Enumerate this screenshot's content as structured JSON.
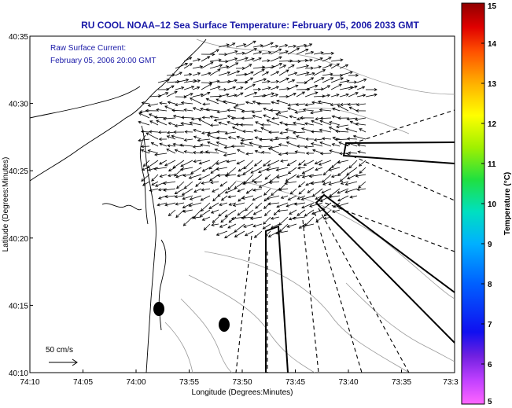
{
  "chart_data": {
    "type": "map",
    "title": "RU COOL  NOAA–12  Sea Surface Temperature:  February 05, 2006 2033 GMT",
    "subtitle": [
      "Raw Surface Current:",
      "February 05, 2006 20:00 GMT"
    ],
    "xlabel": "Longitude (Degrees:Minutes)",
    "ylabel": "Latitude (Degrees:Minutes)",
    "x_ticks": [
      "74:10",
      "74:05",
      "74:00",
      "73:55",
      "73:50",
      "73:45",
      "73:40",
      "73:35",
      "73:3"
    ],
    "y_ticks": [
      "40:35",
      "40:30",
      "40:25",
      "40:20",
      "40:15",
      "40:10"
    ],
    "colorbar": {
      "label": "Temperature (°C)",
      "ticks": [
        "15",
        "14",
        "13",
        "12",
        "11",
        "10",
        "9",
        "8",
        "7",
        "6",
        "5"
      ],
      "range": [
        5,
        15
      ]
    },
    "scale_label": "50 cm/s",
    "grid": false
  }
}
